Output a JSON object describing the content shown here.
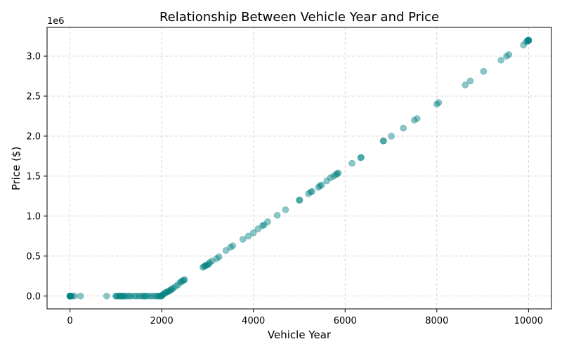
{
  "chart_data": {
    "type": "scatter",
    "title": "Relationship Between Vehicle Year and Price",
    "xlabel": "Vehicle Year",
    "ylabel": "Price ($)",
    "y_offset_label": "1e6",
    "xlim": [
      -500,
      10500
    ],
    "ylim": [
      -160000,
      3360000
    ],
    "xticks": [
      0,
      2000,
      4000,
      6000,
      8000,
      10000
    ],
    "xtick_labels": [
      "0",
      "2000",
      "4000",
      "6000",
      "8000",
      "10000"
    ],
    "yticks": [
      0,
      500000,
      1000000,
      1500000,
      2000000,
      2500000,
      3000000
    ],
    "ytick_labels": [
      "0.0",
      "0.5",
      "1.0",
      "1.5",
      "2.0",
      "2.5",
      "3.0"
    ],
    "grid": true,
    "marker_color": "#008080",
    "marker_alpha": 0.45,
    "x": [
      0,
      0,
      0,
      0,
      0,
      0,
      0,
      10,
      50,
      100,
      230,
      800,
      1000,
      1010,
      1050,
      1080,
      1100,
      1120,
      1150,
      1180,
      1200,
      1250,
      1300,
      1330,
      1400,
      1450,
      1500,
      1550,
      1600,
      1620,
      1650,
      1700,
      1750,
      1800,
      1850,
      1900,
      1920,
      1950,
      1980,
      2000,
      2010,
      2030,
      2050,
      2080,
      2100,
      2130,
      2150,
      2180,
      2200,
      2220,
      2250,
      2300,
      2350,
      2400,
      2430,
      2450,
      2480,
      2500,
      2900,
      2920,
      2950,
      2970,
      3000,
      3020,
      3050,
      3100,
      3200,
      3250,
      3400,
      3500,
      3550,
      3770,
      3890,
      4000,
      4100,
      4200,
      4230,
      4310,
      4520,
      4700,
      5000,
      5010,
      5200,
      5250,
      5280,
      5420,
      5450,
      5490,
      5600,
      5680,
      5750,
      5800,
      5830,
      5850,
      6150,
      6340,
      6350,
      6830,
      6840,
      7010,
      7270,
      7510,
      7570,
      8000,
      8040,
      8620,
      8730,
      9020,
      9400,
      9520,
      9570,
      9890,
      9950,
      9980,
      10000,
      10000,
      10000,
      10000
    ],
    "y": [
      0,
      0,
      0,
      0,
      0,
      0,
      0,
      0,
      0,
      0,
      0,
      0,
      0,
      0,
      0,
      0,
      0,
      0,
      0,
      0,
      0,
      0,
      0,
      0,
      0,
      0,
      0,
      0,
      0,
      0,
      0,
      0,
      0,
      0,
      0,
      0,
      0,
      0,
      0,
      0,
      10000,
      20000,
      30000,
      40000,
      50000,
      55000,
      60000,
      70000,
      80000,
      85000,
      100000,
      120000,
      140000,
      170000,
      180000,
      190000,
      200000,
      205000,
      360000,
      370000,
      380000,
      385000,
      390000,
      400000,
      420000,
      440000,
      470000,
      490000,
      570000,
      610000,
      630000,
      710000,
      750000,
      790000,
      840000,
      880000,
      890000,
      930000,
      1010000,
      1080000,
      1200000,
      1200000,
      1280000,
      1300000,
      1310000,
      1360000,
      1380000,
      1390000,
      1440000,
      1480000,
      1500000,
      1520000,
      1530000,
      1540000,
      1660000,
      1730000,
      1735000,
      1940000,
      1940000,
      2000000,
      2100000,
      2200000,
      2220000,
      2400000,
      2420000,
      2640000,
      2690000,
      2810000,
      2950000,
      3000000,
      3020000,
      3140000,
      3180000,
      3195000,
      3200000,
      3200000,
      3200000,
      3190000
    ]
  }
}
